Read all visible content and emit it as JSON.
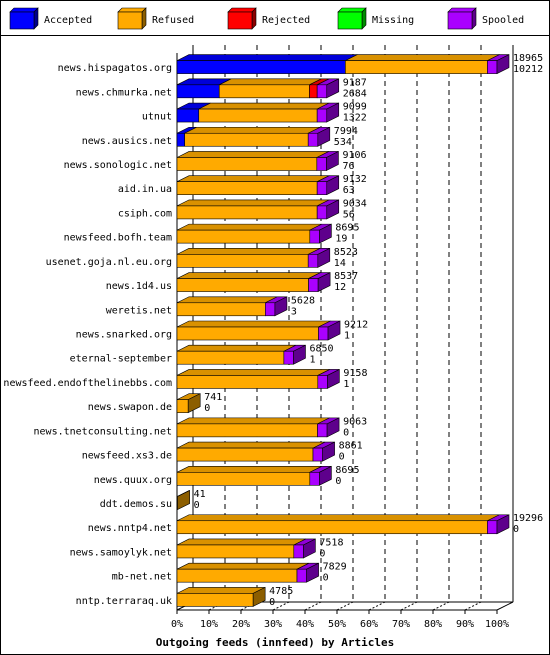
{
  "chart_data": {
    "type": "bar",
    "orientation": "horizontal",
    "stacked": true,
    "title": "Outgoing feeds (innfeed) by Articles",
    "legend_position": "top",
    "legend": [
      {
        "name": "Accepted",
        "color": "#0000ff"
      },
      {
        "name": "Refused",
        "color": "#ffaa00"
      },
      {
        "name": "Rejected",
        "color": "#ff0000"
      },
      {
        "name": "Missing",
        "color": "#00ff00"
      },
      {
        "name": "Spooled",
        "color": "#aa00ff"
      }
    ],
    "x_ticks": [
      "0%",
      "10%",
      "20%",
      "30%",
      "40%",
      "50%",
      "60%",
      "70%",
      "80%",
      "90%",
      "100%"
    ],
    "xlim": [
      0,
      100
    ],
    "rows": [
      {
        "label": "news.hispagatos.org",
        "accepted": 52.6,
        "refused": 44.4,
        "rejected": 0,
        "missing": 0,
        "spooled": 3.0,
        "top_value": "18965",
        "bottom_value": "10212"
      },
      {
        "label": "news.chmurka.net",
        "accepted": 13.2,
        "refused": 28.2,
        "rejected": 2.4,
        "missing": 0,
        "spooled": 3.0,
        "top_value": "9187",
        "bottom_value": "2684"
      },
      {
        "label": "utnut",
        "accepted": 6.8,
        "refused": 37.0,
        "rejected": 0,
        "missing": 0,
        "spooled": 3.0,
        "top_value": "9099",
        "bottom_value": "1322"
      },
      {
        "label": "news.ausics.net",
        "accepted": 2.4,
        "refused": 38.6,
        "rejected": 0,
        "missing": 0,
        "spooled": 3.0,
        "top_value": "7994",
        "bottom_value": "534"
      },
      {
        "label": "news.sonologic.net",
        "accepted": 0,
        "refused": 43.7,
        "rejected": 0,
        "missing": 0,
        "spooled": 3.0,
        "top_value": "9106",
        "bottom_value": "76"
      },
      {
        "label": "aid.in.ua",
        "accepted": 0,
        "refused": 43.8,
        "rejected": 0,
        "missing": 0,
        "spooled": 3.0,
        "top_value": "9132",
        "bottom_value": "63"
      },
      {
        "label": "csiph.com",
        "accepted": 0,
        "refused": 43.8,
        "rejected": 0,
        "missing": 0,
        "spooled": 3.0,
        "top_value": "9034",
        "bottom_value": "56"
      },
      {
        "label": "newsfeed.bofh.team",
        "accepted": 0,
        "refused": 41.5,
        "rejected": 0,
        "missing": 0,
        "spooled": 3.0,
        "top_value": "8695",
        "bottom_value": "19"
      },
      {
        "label": "usenet.goja.nl.eu.org",
        "accepted": 0,
        "refused": 41.0,
        "rejected": 0,
        "missing": 0,
        "spooled": 3.0,
        "top_value": "8523",
        "bottom_value": "14"
      },
      {
        "label": "news.1d4.us",
        "accepted": 0,
        "refused": 41.1,
        "rejected": 0,
        "missing": 0,
        "spooled": 3.0,
        "top_value": "8537",
        "bottom_value": "12"
      },
      {
        "label": "weretis.net",
        "accepted": 0,
        "refused": 27.6,
        "rejected": 0,
        "missing": 0,
        "spooled": 3.0,
        "top_value": "5628",
        "bottom_value": "3"
      },
      {
        "label": "news.snarked.org",
        "accepted": 0,
        "refused": 44.2,
        "rejected": 0,
        "missing": 0,
        "spooled": 3.0,
        "top_value": "9212",
        "bottom_value": "1"
      },
      {
        "label": "eternal-september",
        "accepted": 0,
        "refused": 33.4,
        "rejected": 0,
        "missing": 0,
        "spooled": 3.0,
        "top_value": "6850",
        "bottom_value": "1"
      },
      {
        "label": "newsfeed.endofthelinebbs.com",
        "accepted": 0,
        "refused": 44.0,
        "rejected": 0,
        "missing": 0,
        "spooled": 3.0,
        "top_value": "9158",
        "bottom_value": "1"
      },
      {
        "label": "news.swapon.de",
        "accepted": 0,
        "refused": 3.5,
        "rejected": 0,
        "missing": 0,
        "spooled": 0,
        "top_value": "741",
        "bottom_value": "0"
      },
      {
        "label": "news.tnetconsulting.net",
        "accepted": 0,
        "refused": 43.9,
        "rejected": 0,
        "missing": 0,
        "spooled": 3.0,
        "top_value": "9063",
        "bottom_value": "0"
      },
      {
        "label": "newsfeed.xs3.de",
        "accepted": 0,
        "refused": 42.5,
        "rejected": 0,
        "missing": 0,
        "spooled": 3.0,
        "top_value": "8861",
        "bottom_value": "0"
      },
      {
        "label": "news.quux.org",
        "accepted": 0,
        "refused": 41.5,
        "rejected": 0,
        "missing": 0,
        "spooled": 3.0,
        "top_value": "8695",
        "bottom_value": "0"
      },
      {
        "label": "ddt.demos.su",
        "accepted": 0,
        "refused": 0.2,
        "rejected": 0,
        "missing": 0,
        "spooled": 0,
        "top_value": "41",
        "bottom_value": "0"
      },
      {
        "label": "news.nntp4.net",
        "accepted": 0,
        "refused": 97.0,
        "rejected": 0,
        "missing": 0,
        "spooled": 3.0,
        "top_value": "19296",
        "bottom_value": "0"
      },
      {
        "label": "news.samoylyk.net",
        "accepted": 0,
        "refused": 36.5,
        "rejected": 0,
        "missing": 0,
        "spooled": 3.0,
        "top_value": "7518",
        "bottom_value": "0"
      },
      {
        "label": "mb-net.net",
        "accepted": 0,
        "refused": 37.5,
        "rejected": 0,
        "missing": 0,
        "spooled": 3.0,
        "top_value": "7829",
        "bottom_value": "0"
      },
      {
        "label": "nntp.terraraq.uk",
        "accepted": 0,
        "refused": 23.8,
        "rejected": 0,
        "missing": 0,
        "spooled": 0,
        "top_value": "4785",
        "bottom_value": "0"
      }
    ]
  }
}
